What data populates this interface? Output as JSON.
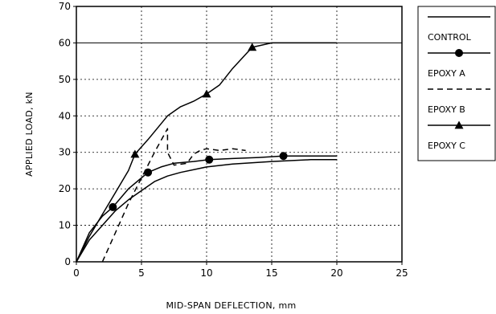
{
  "chart_data": {
    "type": "line",
    "xlabel": "MID-SPAN DEFLECTION, mm",
    "ylabel": "APPLIED LOAD, kN",
    "xlim": [
      0,
      25
    ],
    "ylim": [
      0,
      70
    ],
    "x_ticks": [
      "0",
      "5",
      "10",
      "15",
      "20",
      "25"
    ],
    "y_ticks": [
      "0",
      "10",
      "20",
      "30",
      "40",
      "50",
      "60",
      "70"
    ],
    "grid": "dotted",
    "legend_position": "right",
    "series": [
      {
        "name": "CONTROL",
        "style": "solid",
        "marker": "none",
        "points": [
          [
            0,
            0
          ],
          [
            1,
            6
          ],
          [
            2,
            10
          ],
          [
            3,
            14
          ],
          [
            4,
            17
          ],
          [
            5,
            19.5
          ],
          [
            6,
            22
          ],
          [
            7,
            23.5
          ],
          [
            8,
            24.5
          ],
          [
            10,
            26
          ],
          [
            12,
            26.8
          ],
          [
            15,
            27.5
          ],
          [
            18,
            28
          ],
          [
            20,
            28
          ]
        ]
      },
      {
        "name": "EPOXY A",
        "style": "solid",
        "marker": "circle",
        "points": [
          [
            0,
            0
          ],
          [
            1,
            8
          ],
          [
            2,
            12.5
          ],
          [
            2.8,
            15
          ],
          [
            4,
            20
          ],
          [
            5,
            23
          ],
          [
            5.5,
            24.5
          ],
          [
            6.5,
            26
          ],
          [
            7.5,
            27
          ],
          [
            9,
            27.5
          ],
          [
            10.2,
            28
          ],
          [
            12,
            28.3
          ],
          [
            14,
            28.6
          ],
          [
            15.9,
            29
          ],
          [
            17,
            29
          ],
          [
            19,
            29
          ],
          [
            20,
            29
          ]
        ],
        "marker_points": [
          [
            2.8,
            15
          ],
          [
            5.5,
            24.5
          ],
          [
            10.2,
            28
          ],
          [
            15.9,
            29
          ]
        ]
      },
      {
        "name": "EPOXY B",
        "style": "dashed",
        "marker": "none",
        "points": [
          [
            2,
            0
          ],
          [
            3,
            8
          ],
          [
            4,
            16
          ],
          [
            5,
            23
          ],
          [
            6,
            30
          ],
          [
            7,
            36.5
          ],
          [
            7,
            30
          ],
          [
            7.5,
            26.5
          ],
          [
            8.5,
            27
          ],
          [
            9,
            29.5
          ],
          [
            9.5,
            30.5
          ],
          [
            10,
            31
          ],
          [
            11,
            30.5
          ],
          [
            12,
            31
          ],
          [
            13,
            30.5
          ]
        ]
      },
      {
        "name": "EPOXY C",
        "style": "solid",
        "marker": "triangle",
        "points": [
          [
            0,
            0
          ],
          [
            1,
            7
          ],
          [
            2,
            13
          ],
          [
            3,
            19
          ],
          [
            4,
            25
          ],
          [
            4.5,
            29.5
          ],
          [
            5.5,
            33.5
          ],
          [
            7,
            40
          ],
          [
            8,
            42.5
          ],
          [
            9,
            44
          ],
          [
            10,
            46
          ],
          [
            11,
            48.5
          ],
          [
            12,
            53
          ],
          [
            13.5,
            58.8
          ],
          [
            15,
            60
          ],
          [
            17,
            60
          ],
          [
            20,
            60
          ]
        ],
        "marker_points": [
          [
            4.5,
            29.5
          ],
          [
            10,
            46
          ],
          [
            13.5,
            58.8
          ]
        ]
      }
    ]
  }
}
